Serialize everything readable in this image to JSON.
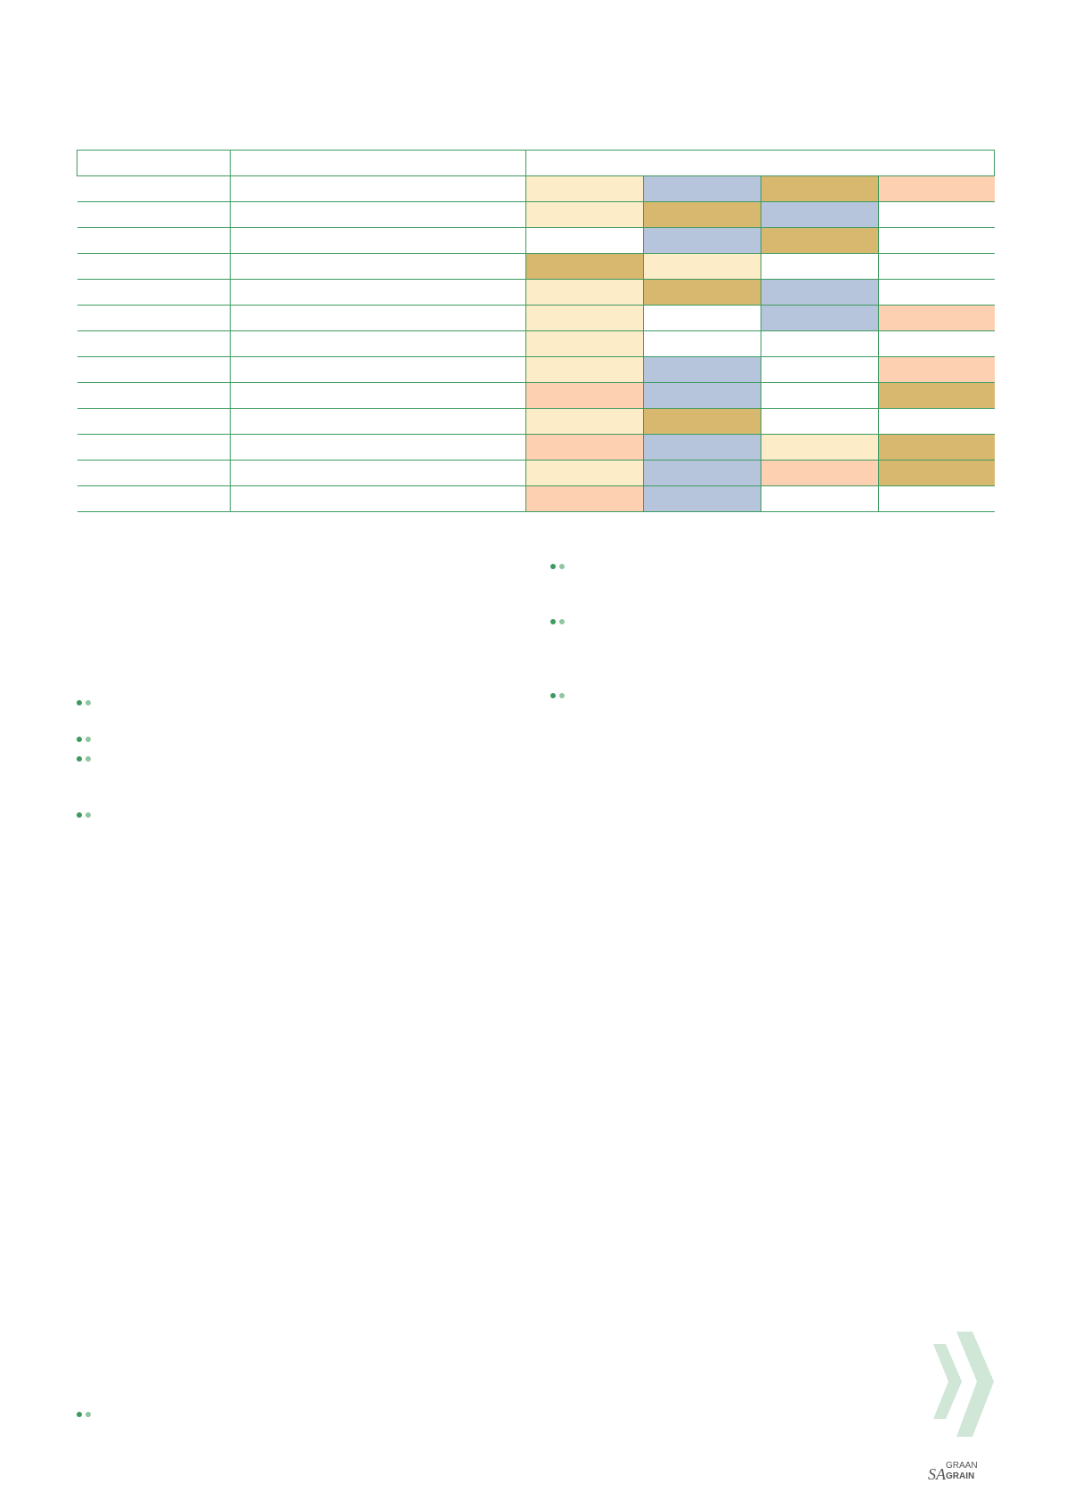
{
  "colors": {
    "border": "#3d9a5f",
    "cream": "#fdecc8",
    "blue": "#b7c5dc",
    "gold": "#d8b86f",
    "peach": "#fdd0b1",
    "white": "#ffffff",
    "bullet_dark": "#3d9a5f",
    "bullet_light": "#8fc5a0",
    "chevron": "#d0e6d6"
  },
  "rating_grid": [
    [
      "cream",
      "blue",
      "gold",
      "peach"
    ],
    [
      "cream",
      "gold",
      "blue",
      "white"
    ],
    [
      "white",
      "blue",
      "gold",
      "white"
    ],
    [
      "gold",
      "cream",
      "white",
      "white"
    ],
    [
      "cream",
      "gold",
      "blue",
      "white"
    ],
    [
      "cream",
      "white",
      "blue",
      "peach"
    ],
    [
      "cream",
      "white",
      "white",
      "white"
    ],
    [
      "cream",
      "blue",
      "white",
      "peach"
    ],
    [
      "peach",
      "blue",
      "white",
      "gold"
    ],
    [
      "cream",
      "gold",
      "white",
      "white"
    ],
    [
      "peach",
      "blue",
      "cream",
      "gold"
    ],
    [
      "cream",
      "blue",
      "peach",
      "gold"
    ],
    [
      "peach",
      "blue",
      "white",
      "white"
    ]
  ],
  "logo": {
    "line1": "GRAAN",
    "line2": "GRAIN",
    "prefix": "SA"
  },
  "icons": {
    "bullet": "two-dot-bullet-icon",
    "chevron": "double-chevron-right-icon"
  }
}
